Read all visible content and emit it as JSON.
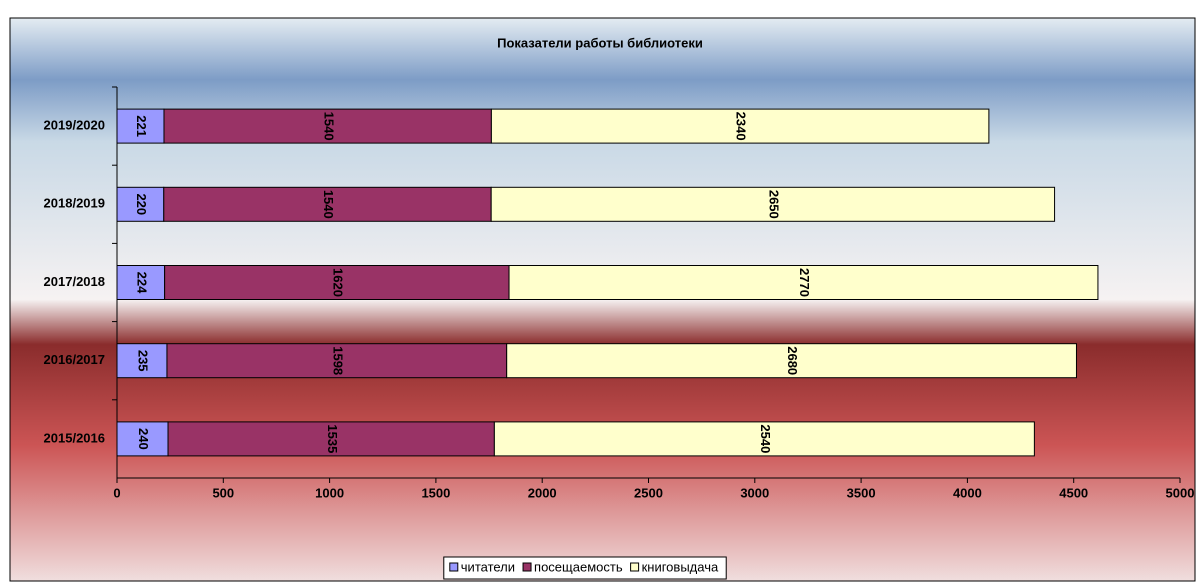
{
  "chart_data": {
    "type": "stacked-barh",
    "title": "Показатели работы библиотеки",
    "categories": [
      "2019/2020",
      "2018/2019",
      "2017/2018",
      "2016/2017",
      "2015/2016"
    ],
    "series": [
      {
        "name": "читатели",
        "color": "#9999ff",
        "values": [
          221,
          220,
          224,
          235,
          240
        ]
      },
      {
        "name": "посещаемость",
        "color": "#993366",
        "values": [
          1540,
          1540,
          1620,
          1598,
          1535
        ]
      },
      {
        "name": "книговыдача",
        "color": "#ffffcc",
        "values": [
          2340,
          2650,
          2770,
          2680,
          2540
        ]
      }
    ],
    "xlim": [
      0,
      5000
    ],
    "xticks": [
      0,
      500,
      1000,
      1500,
      2000,
      2500,
      3000,
      3500,
      4000,
      4500,
      5000
    ],
    "legend": "bottom"
  }
}
